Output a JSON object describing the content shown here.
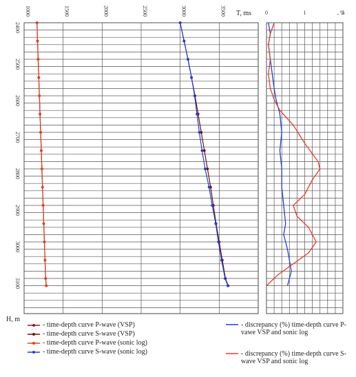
{
  "chart_data": [
    {
      "type": "line",
      "xlim": [
        1000,
        4000
      ],
      "ylim": [
        2400,
        3200
      ],
      "x_ticks": [
        "1000",
        "1500",
        "2000",
        "2500",
        "3000",
        "3500"
      ],
      "y_ticks": [
        "2400",
        "2500",
        "2600",
        "2700",
        "2800",
        "2900",
        "3000",
        "3100"
      ],
      "xlabel": "T, ms",
      "ylabel": "H, m",
      "y_inverted": true,
      "grid": true,
      "series": [
        {
          "name": "- time-depth curve P-wave (VSP)",
          "color": "#8b1a2b",
          "marker": "dot",
          "x": [
            1165,
            1172,
            1180,
            1188,
            1196,
            1204,
            1212,
            1220,
            1228,
            1236,
            1244,
            1252,
            1260,
            1268,
            1276,
            1284
          ],
          "y": [
            2400,
            2450,
            2500,
            2550,
            2600,
            2650,
            2700,
            2750,
            2800,
            2850,
            2900,
            2950,
            3000,
            3050,
            3100,
            3120
          ]
        },
        {
          "name": "- time-depth curve S-wave (VSP)",
          "color": "#6b1010",
          "marker": "dot",
          "x": [
            3000,
            3050,
            3100,
            3145,
            3190,
            3230,
            3270,
            3310,
            3350,
            3390,
            3425,
            3460,
            3500,
            3540,
            3580,
            3615
          ],
          "y": [
            2400,
            2450,
            2500,
            2550,
            2600,
            2650,
            2700,
            2750,
            2800,
            2850,
            2900,
            2950,
            3000,
            3050,
            3100,
            3120
          ]
        },
        {
          "name": "- time-depth curve P-wave (sonic log)",
          "color": "#e04020",
          "marker": "dot",
          "x": [
            1165,
            1172,
            1180,
            1188,
            1196,
            1204,
            1212,
            1220,
            1228,
            1236,
            1244,
            1252,
            1260,
            1268,
            1276,
            1284
          ],
          "y": [
            2400,
            2450,
            2500,
            2550,
            2600,
            2650,
            2700,
            2750,
            2800,
            2850,
            2900,
            2950,
            3000,
            3050,
            3100,
            3120
          ]
        },
        {
          "name": "- time-depth curve S-wave (sonic log)",
          "color": "#1f3fd6",
          "marker": "dot",
          "x": [
            3000,
            3050,
            3100,
            3145,
            3185,
            3215,
            3245,
            3280,
            3320,
            3370,
            3410,
            3455,
            3490,
            3530,
            3575,
            3610
          ],
          "y": [
            2400,
            2450,
            2500,
            2550,
            2600,
            2650,
            2700,
            2750,
            2800,
            2850,
            2900,
            2950,
            3000,
            3050,
            3100,
            3120
          ]
        }
      ]
    },
    {
      "type": "line",
      "xlim": [
        0,
        2
      ],
      "ylim": [
        2400,
        3200
      ],
      "x_ticks": [
        "0",
        "1",
        "2"
      ],
      "xlabel": ", %",
      "y_inverted": true,
      "grid": true,
      "series": [
        {
          "name": "- discrepancy (%) time-depth curve P-vawe VSP and sonic log",
          "color": "#1f3fd6",
          "x": [
            0.05,
            0.1,
            0.05,
            0.1,
            0.15,
            0.2,
            0.25,
            0.35,
            0.4,
            0.35,
            0.4,
            0.4,
            0.45,
            0.5,
            0.45,
            0.55,
            0.6,
            0.65,
            0.6,
            0.55
          ],
          "y": [
            2400,
            2430,
            2460,
            2500,
            2540,
            2580,
            2610,
            2650,
            2700,
            2750,
            2800,
            2850,
            2900,
            2950,
            2980,
            3020,
            3050,
            3080,
            3100,
            3120
          ]
        },
        {
          "name": "- discrepancy (%) time-depth curve S-wave VSP and sonic log",
          "color": "#e83a2a",
          "x": [
            0.2,
            0.1,
            0.05,
            0.1,
            0.05,
            0.1,
            0.2,
            0.35,
            0.7,
            1.0,
            1.35,
            1.4,
            1.2,
            1.0,
            0.7,
            0.8,
            1.1,
            1.3,
            1.1,
            0.7,
            0.3,
            0.0
          ],
          "y": [
            2400,
            2430,
            2460,
            2500,
            2540,
            2580,
            2610,
            2640,
            2680,
            2730,
            2780,
            2800,
            2830,
            2870,
            2900,
            2930,
            2960,
            3000,
            3030,
            3060,
            3090,
            3120
          ]
        }
      ]
    }
  ]
}
